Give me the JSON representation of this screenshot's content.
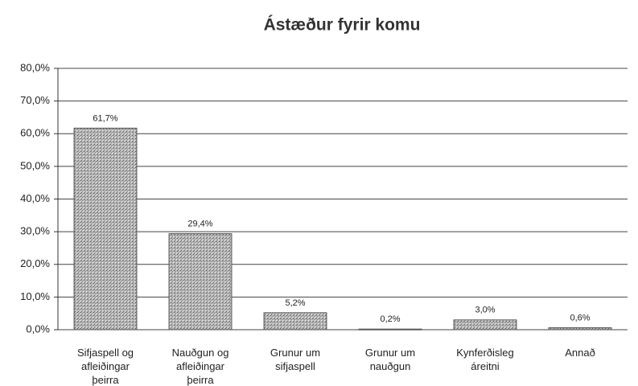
{
  "chart_data": {
    "type": "bar",
    "title": "Ástæður fyrir komu",
    "categories": [
      "Sifjaspell og afleiðingar þeirra",
      "Nauðgun og afleiðingar þeirra",
      "Grunur um sifjaspell",
      "Grunur um nauðgun",
      "Kynferðisleg áreitni",
      "Annað"
    ],
    "values": [
      61.7,
      29.4,
      5.2,
      0.2,
      3.0,
      0.6
    ],
    "value_labels": [
      "61,7%",
      "29,4%",
      "5,2%",
      "0,2%",
      "3,0%",
      "0,6%"
    ],
    "color": "#9c9c9c",
    "ylim": [
      0,
      80
    ],
    "yticks": [
      {
        "value": 0,
        "label": "0,0%"
      },
      {
        "value": 10,
        "label": "10,0%"
      },
      {
        "value": 20,
        "label": "20,0%"
      },
      {
        "value": 30,
        "label": "30,0%"
      },
      {
        "value": 40,
        "label": "40,0%"
      },
      {
        "value": 50,
        "label": "50,0%"
      },
      {
        "value": 60,
        "label": "60,0%"
      },
      {
        "value": 70,
        "label": "70,0%"
      },
      {
        "value": 80,
        "label": "80,0%"
      }
    ],
    "grid": true
  }
}
